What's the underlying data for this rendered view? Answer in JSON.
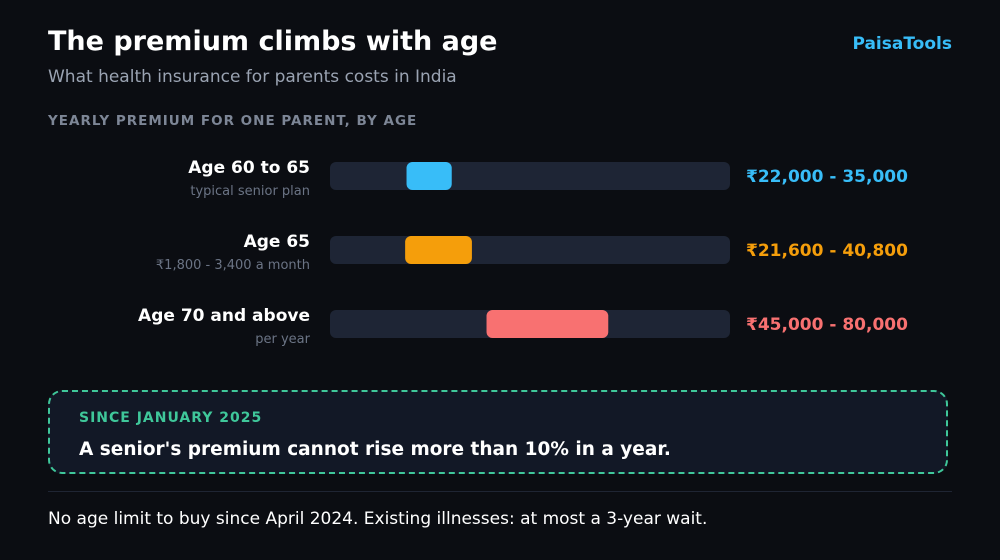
{
  "header": {
    "title": "The premium climbs with age",
    "subtitle": "What health insurance for parents costs in India",
    "brand": "PaisaTools"
  },
  "colors": {
    "background": "#0b0d12",
    "track": "#1e2535",
    "accent_green": "#3fc79a",
    "brand_blue": "#38bdf8"
  },
  "chart_data": {
    "type": "bar",
    "title": "YEARLY PREMIUM FOR ONE PARENT, BY AGE",
    "xlim": [
      0,
      115000
    ],
    "categories": [
      "Age 60 to 65",
      "Age 65",
      "Age 70 and above"
    ],
    "sublabels": [
      "typical senior plan",
      "₹1,800 - 3,400 a month",
      "per year"
    ],
    "ranges": [
      {
        "low": 22000,
        "high": 35000,
        "label": "₹22,000 - 35,000",
        "color": "#38bdf8"
      },
      {
        "low": 21600,
        "high": 40800,
        "label": "₹21,600 - 40,800",
        "color": "#f59e0b"
      },
      {
        "low": 45000,
        "high": 80000,
        "label": "₹45,000 - 80,000",
        "color": "#f87171"
      }
    ]
  },
  "callout": {
    "kicker": "SINCE JANUARY 2025",
    "text": "A senior's premium cannot rise more than 10% in a year."
  },
  "footnote": "No age limit to buy since April 2024. Existing illnesses: at most a 3-year wait."
}
